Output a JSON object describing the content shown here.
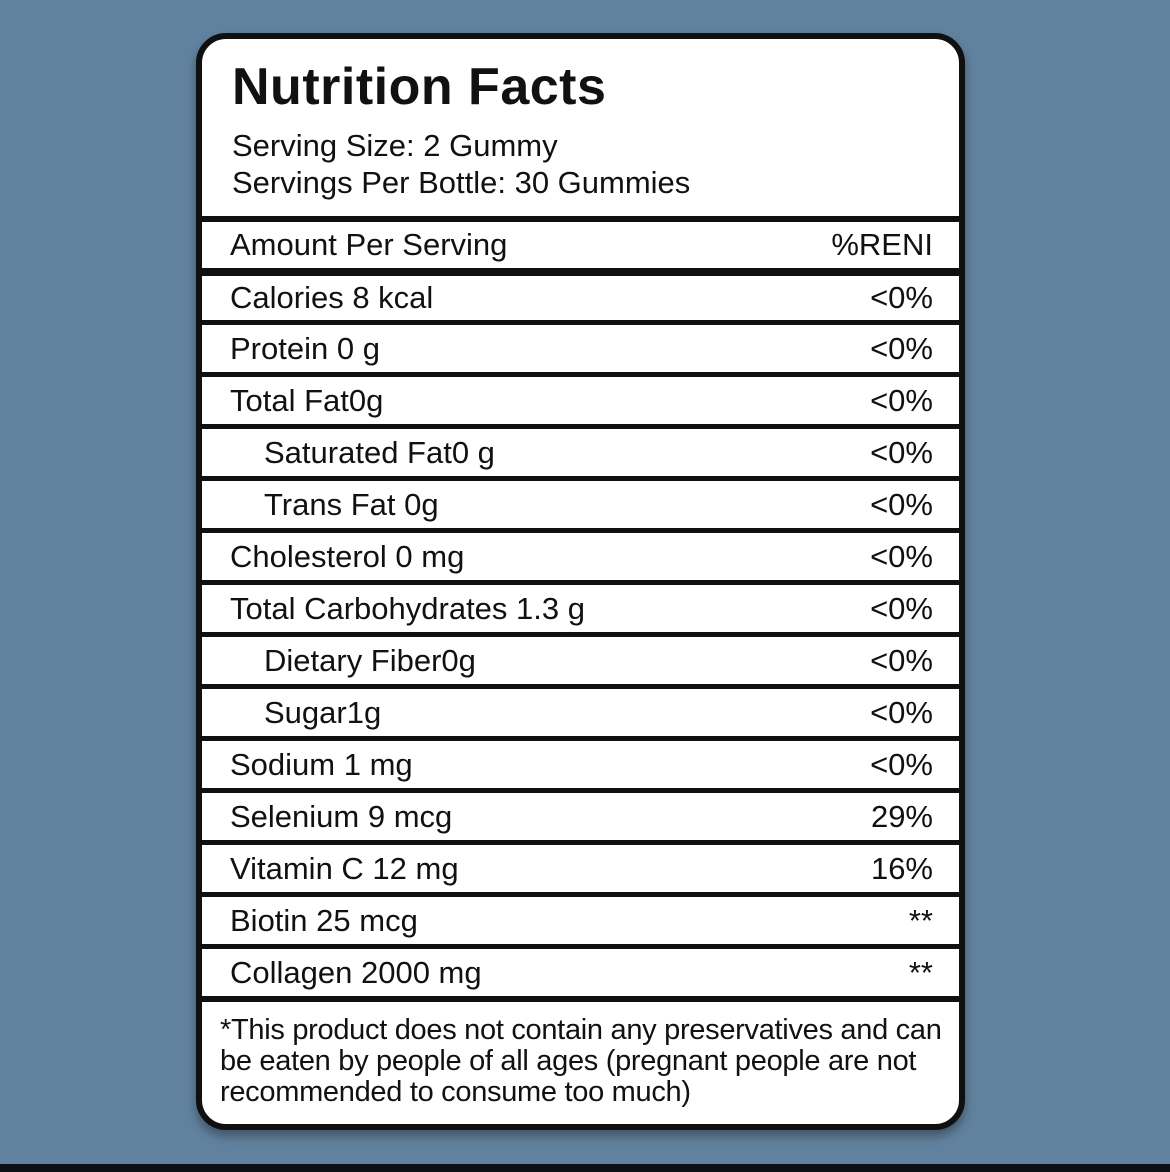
{
  "colors": {
    "background": "#61829e",
    "card_background": "#ffffff",
    "border": "#101010",
    "letterbox_bar": "#0c0f14"
  },
  "label": {
    "title": "Nutrition Facts",
    "serving_size": "Serving Size: 2 Gummy",
    "servings_per_bottle": "Servings Per Bottle: 30 Gummies",
    "header": {
      "left": "Amount Per Serving",
      "right": "%RENI"
    },
    "rows": [
      {
        "name": "Calories 8 kcal",
        "value": "<0%",
        "indent": false
      },
      {
        "name": "Protein 0 g",
        "value": "<0%",
        "indent": false
      },
      {
        "name": "Total Fat0g",
        "value": "<0%",
        "indent": false
      },
      {
        "name": "Saturated Fat0 g",
        "value": "<0%",
        "indent": true
      },
      {
        "name": "Trans Fat 0g",
        "value": "<0%",
        "indent": true
      },
      {
        "name": "Cholesterol 0 mg",
        "value": "<0%",
        "indent": false
      },
      {
        "name": "Total Carbohydrates 1.3 g",
        "value": "<0%",
        "indent": false
      },
      {
        "name": "Dietary Fiber0g",
        "value": "<0%",
        "indent": true
      },
      {
        "name": "Sugar1g",
        "value": "<0%",
        "indent": true
      },
      {
        "name": "Sodium 1 mg",
        "value": "<0%",
        "indent": false
      },
      {
        "name": "Selenium 9 mcg",
        "value": "29%",
        "indent": false
      },
      {
        "name": "Vitamin C 12 mg",
        "value": "16%",
        "indent": false
      },
      {
        "name": "Biotin 25 mcg",
        "value": "**",
        "indent": false
      },
      {
        "name": "Collagen 2000 mg",
        "value": "**",
        "indent": false
      }
    ],
    "footnote": "*This product does not contain any preservatives and can be eaten by people of all ages (pregnant people are not recommended to consume too much)"
  }
}
